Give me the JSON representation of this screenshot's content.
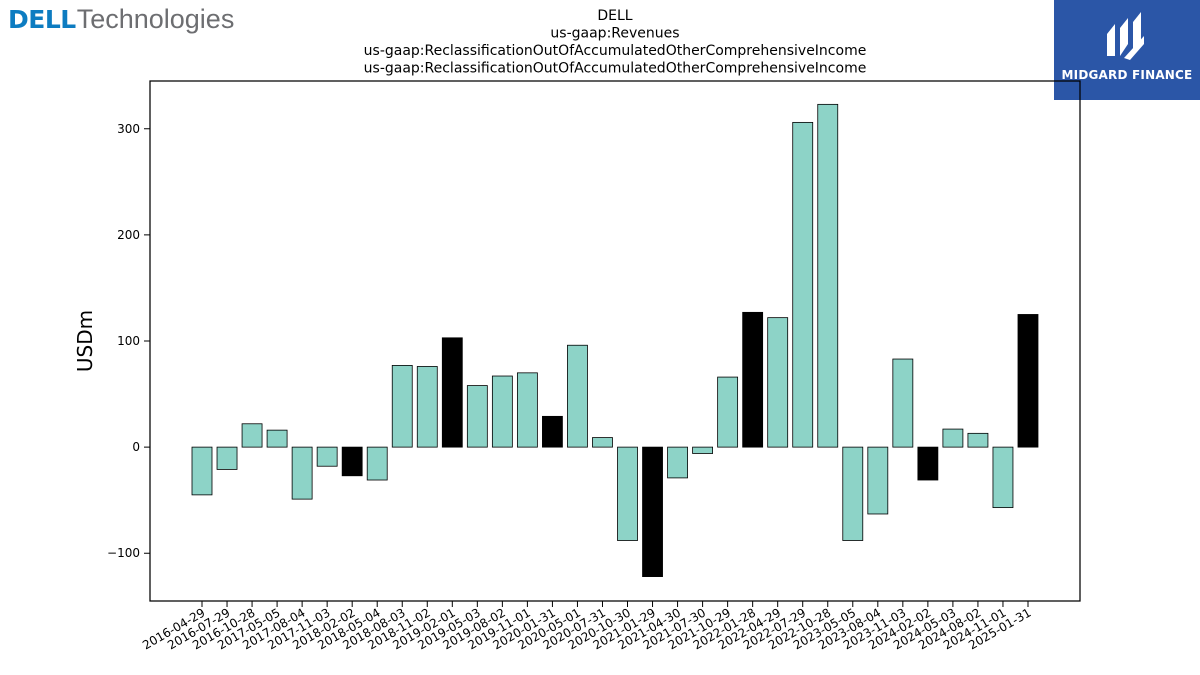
{
  "logos": {
    "left_brand": "DELL",
    "left_suffix": "Technologies",
    "right_caption": "MIDGARD FINANCE"
  },
  "colors": {
    "bar_default": "#8dd3c7",
    "bar_highlight": "#000000",
    "bar_edge": "#000000",
    "midgard_bg": "#2b56a7",
    "dell_blue": "#0d7cc1"
  },
  "chart_data": {
    "type": "bar",
    "title_lines": [
      "DELL",
      "us-gaap:Revenues",
      "us-gaap:ReclassificationOutOfAccumulatedOtherComprehensiveIncome",
      "us-gaap:ReclassificationOutOfAccumulatedOtherComprehensiveIncome"
    ],
    "xlabel": "",
    "ylabel": "USDm",
    "ylim": [
      -145,
      345
    ],
    "yticks": [
      -100,
      0,
      100,
      200,
      300
    ],
    "ytick_labels": [
      "−100",
      "0",
      "100",
      "200",
      "300"
    ],
    "grid": false,
    "categories": [
      "2016-04-29",
      "2016-07-29",
      "2016-10-28",
      "2017-05-05",
      "2017-08-04",
      "2017-11-03",
      "2018-02-02",
      "2018-05-04",
      "2018-08-03",
      "2018-11-02",
      "2019-02-01",
      "2019-05-03",
      "2019-08-02",
      "2019-11-01",
      "2020-01-31",
      "2020-05-01",
      "2020-07-31",
      "2020-10-30",
      "2021-01-29",
      "2021-04-30",
      "2021-07-30",
      "2021-10-29",
      "2022-01-28",
      "2022-04-29",
      "2022-07-29",
      "2022-10-28",
      "2023-05-05",
      "2023-08-04",
      "2023-11-03",
      "2024-02-02",
      "2024-05-03",
      "2024-08-02",
      "2024-11-01",
      "2025-01-31"
    ],
    "values": [
      -45,
      -21,
      22,
      16,
      -49,
      -18,
      -27,
      -31,
      77,
      76,
      103,
      58,
      67,
      70,
      29,
      96,
      9,
      -88,
      -122,
      -29,
      -6,
      66,
      127,
      122,
      306,
      323,
      -88,
      -63,
      83,
      -31,
      17,
      13,
      -57,
      125
    ],
    "highlight": [
      false,
      false,
      false,
      false,
      false,
      false,
      true,
      false,
      false,
      false,
      true,
      false,
      false,
      false,
      true,
      false,
      false,
      false,
      true,
      false,
      false,
      false,
      true,
      false,
      false,
      false,
      false,
      false,
      false,
      true,
      false,
      false,
      false,
      true
    ]
  }
}
